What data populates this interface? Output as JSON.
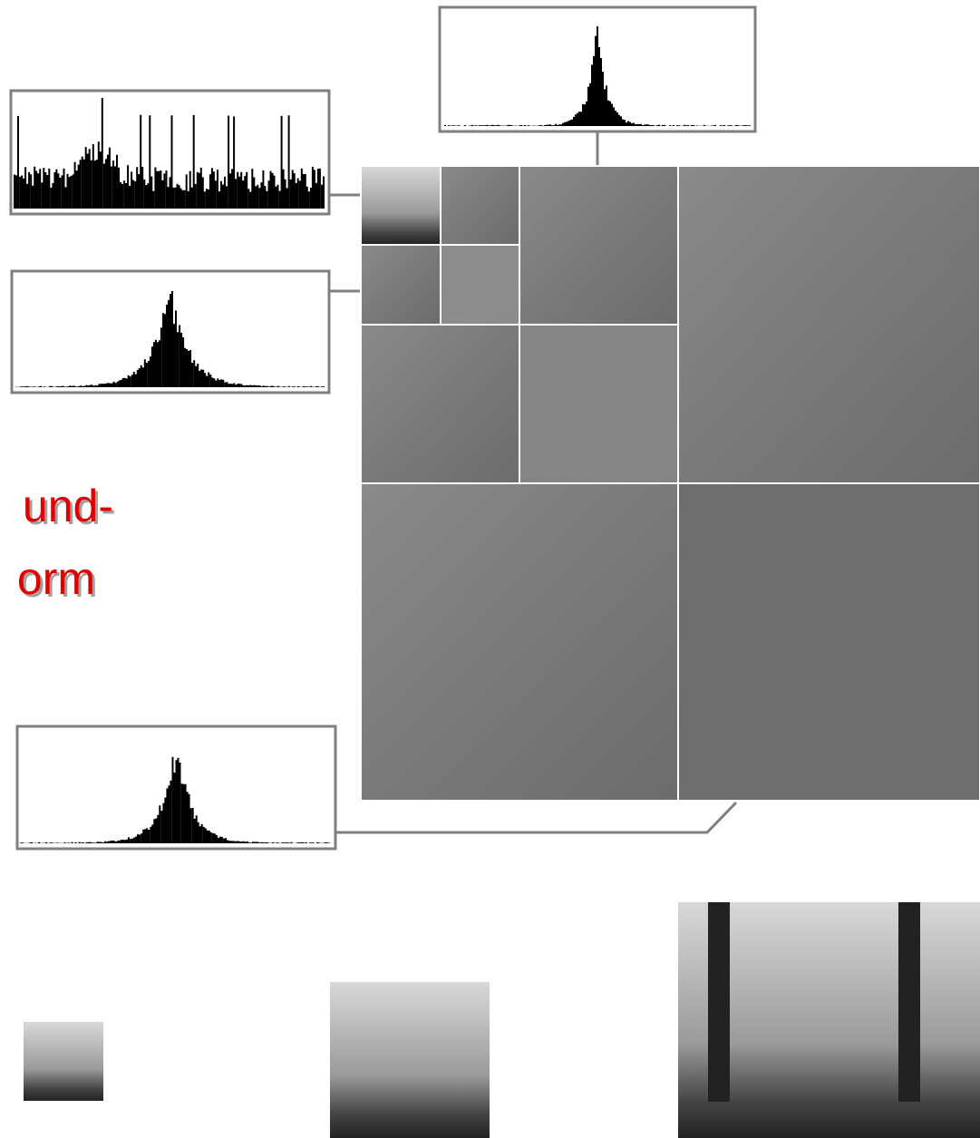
{
  "title": {
    "lines": [
      "und-",
      "orm"
    ]
  }
}
